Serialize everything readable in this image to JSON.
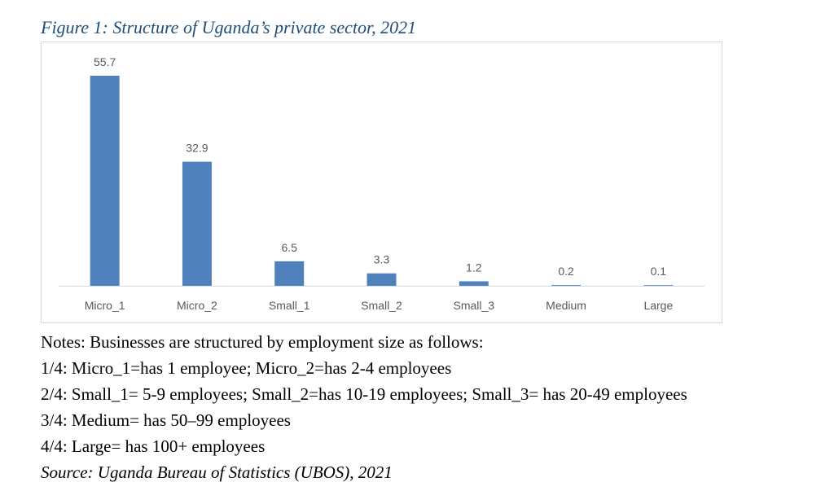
{
  "figure": {
    "title": "Figure 1: Structure of Uganda’s private sector, 2021"
  },
  "chart_data": {
    "type": "bar",
    "categories": [
      "Micro_1",
      "Micro_2",
      "Small_1",
      "Small_2",
      "Small_3",
      "Medium",
      "Large"
    ],
    "values": [
      55.7,
      32.9,
      6.5,
      3.3,
      1.2,
      0.2,
      0.1
    ],
    "data_labels": [
      "55.7",
      "32.9",
      "6.5",
      "3.3",
      "1.2",
      "0.2",
      "0.1"
    ],
    "title": "",
    "xlabel": "",
    "ylabel": "",
    "ylim": [
      0,
      55.7
    ],
    "grid": false,
    "legend": "none",
    "bar_color": "#4f81bd",
    "axis_color": "#d9d9d9",
    "label_color": "#595959"
  },
  "notes": {
    "heading": "Notes: Businesses are structured by employment size as follows:",
    "line1": "1/4: Micro_1=has 1 employee; Micro_2=has 2-4 employees",
    "line2": "2/4: Small_1= 5-9 employees; Small_2=has 10-19 employees; Small_3= has 20-49 employees",
    "line3": "3/4: Medium= has 50–99 employees",
    "line4": "4/4: Large= has 100+ employees",
    "source": "Source: Uganda Bureau of Statistics (UBOS), 2021"
  }
}
